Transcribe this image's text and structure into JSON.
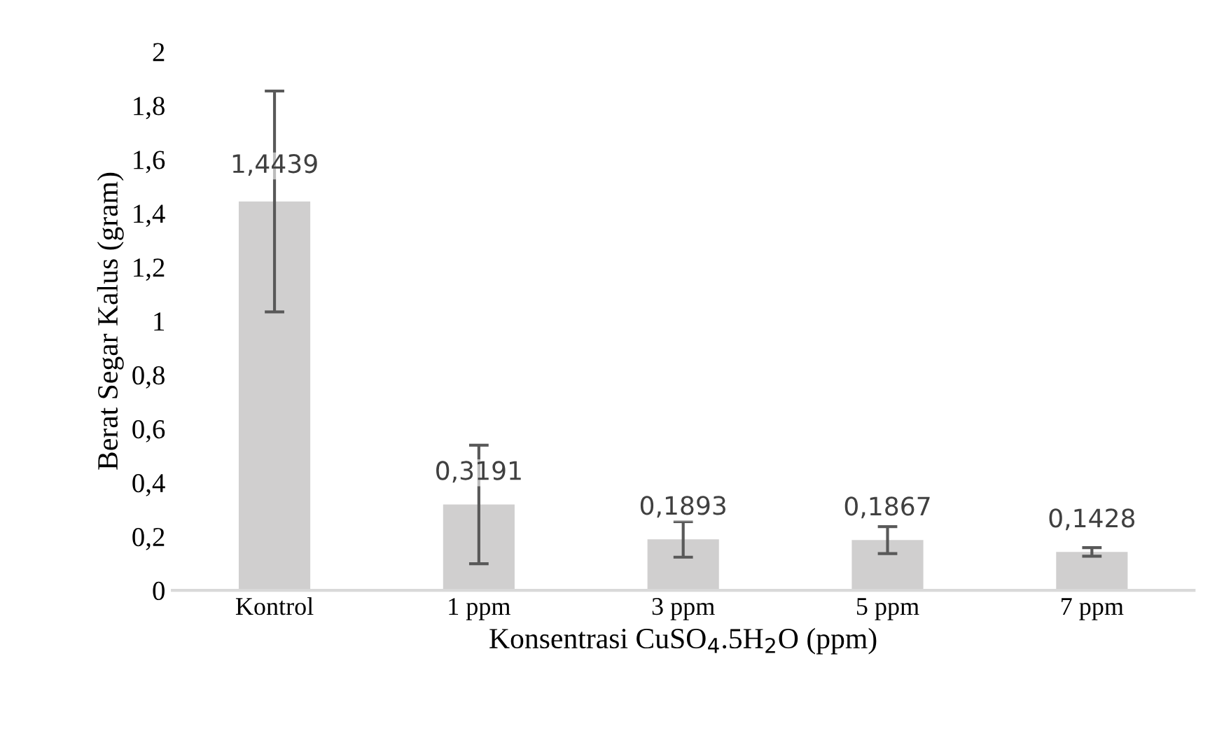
{
  "chart_data": {
    "type": "bar",
    "categories": [
      "Kontrol",
      "1 ppm",
      "3 ppm",
      "5 ppm",
      "7 ppm"
    ],
    "values": [
      1.4439,
      0.3191,
      0.1893,
      0.1867,
      0.1428
    ],
    "errors": [
      0.41,
      0.22,
      0.066,
      0.05,
      0.016
    ],
    "color": "#d0cfcf",
    "value_labels": [
      "1,4439",
      "0,3191",
      "0,1893",
      "0,1867",
      "0,1428"
    ],
    "xlabel": "Konsentrasi CuSO$_{4}$.5H$_{2}$O (ppm)",
    "ylabel": "Berat Segar Kalus (gram)",
    "ylim": [
      0,
      2
    ],
    "yticks": [
      {
        "value": 0,
        "label": "0"
      },
      {
        "value": 0.2,
        "label": "0,2"
      },
      {
        "value": 0.4,
        "label": "0,4"
      },
      {
        "value": 0.6,
        "label": "0,6"
      },
      {
        "value": 0.8,
        "label": "0,8"
      },
      {
        "value": 1,
        "label": "1"
      },
      {
        "value": 1.2,
        "label": "1,2"
      },
      {
        "value": 1.4,
        "label": "1,4"
      },
      {
        "value": 1.6,
        "label": "1,6"
      },
      {
        "value": 1.8,
        "label": "1,8"
      },
      {
        "value": 2,
        "label": "2"
      }
    ],
    "grid": false,
    "legend": false
  }
}
